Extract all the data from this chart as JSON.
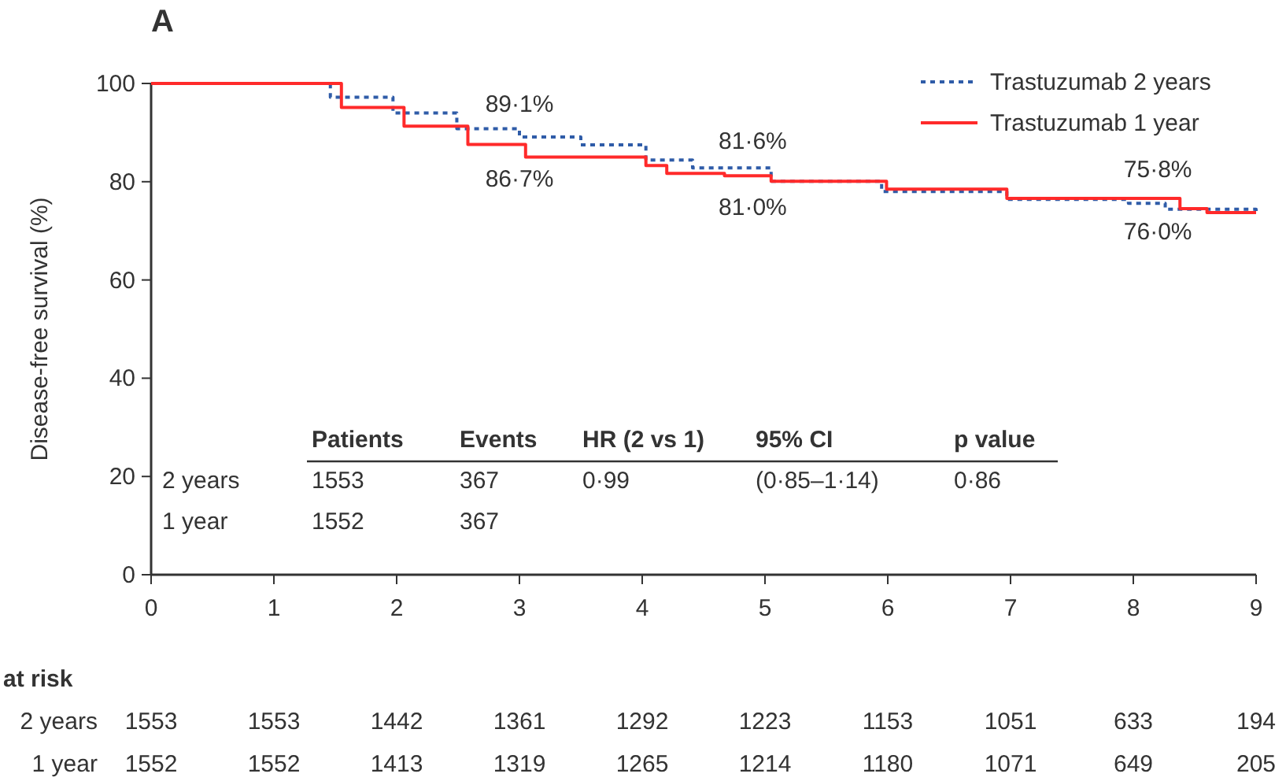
{
  "chart_data": {
    "type": "step",
    "title": "A",
    "ylabel": "Disease-free survival (%)",
    "xlim": [
      0,
      9
    ],
    "ylim": [
      0,
      100
    ],
    "xticks": [
      0,
      1,
      2,
      3,
      4,
      5,
      6,
      7,
      8,
      9
    ],
    "yticks": [
      0,
      20,
      40,
      60,
      80,
      100
    ],
    "grid": false,
    "legend": "top right",
    "series": [
      {
        "name": "Trastuzumab 2 years",
        "color": "#2f5ca8",
        "line_style": "dotted",
        "x": [
          0,
          1,
          1.46,
          1.97,
          2.49,
          3.0,
          3.5,
          4.03,
          4.41,
          5.05,
          5.95,
          6.97,
          7.96,
          8.26,
          9.0
        ],
        "values": [
          100,
          100,
          97.2,
          94.0,
          90.8,
          89.1,
          87.5,
          84.4,
          82.8,
          80.1,
          78.0,
          76.4,
          75.6,
          74.4,
          73.7
        ]
      },
      {
        "name": "Trastuzumab 1 year",
        "color": "#ff2a2a",
        "line_style": "solid",
        "x": [
          0,
          1,
          1.55,
          2.06,
          2.58,
          3.05,
          4.03,
          4.2,
          4.67,
          5.05,
          5.99,
          6.97,
          8.38,
          8.6,
          9.0
        ],
        "values": [
          100,
          100,
          95.1,
          91.3,
          87.6,
          85.0,
          83.3,
          81.7,
          81.2,
          80.1,
          78.5,
          76.6,
          74.5,
          73.7,
          73.7
        ]
      }
    ],
    "annotations": [
      "Patients",
      "Events",
      "HR (2 vs 1)",
      "95% CI",
      "p value",
      "2 years",
      "1553",
      "367",
      "0·99",
      "(0·85–1·14)",
      "0·86",
      "1 year",
      "1552",
      "367",
      "at risk",
      "2 years",
      "1553",
      "1553",
      "1442",
      "1361",
      "1292",
      "1223",
      "1153",
      "1051",
      "633",
      "194",
      "1 year",
      "1552",
      "1552",
      "1413",
      "1319",
      "1265",
      "1214",
      "1180",
      "1071",
      "649",
      "205",
      {
        "text": "89·1%",
        "x": 3,
        "y": 89.1
      },
      {
        "text": "86·7%",
        "x": 3,
        "y": 86.7
      },
      {
        "text": "81·6%",
        "x": 4.9,
        "y": 81.6
      },
      {
        "text": "81·0%",
        "x": 4.9,
        "y": 81.0
      },
      {
        "text": "75·8%",
        "x": 8.2,
        "y": 75.8
      },
      {
        "text": "76·0%",
        "x": 8.2,
        "y": 76.0
      }
    ]
  }
}
